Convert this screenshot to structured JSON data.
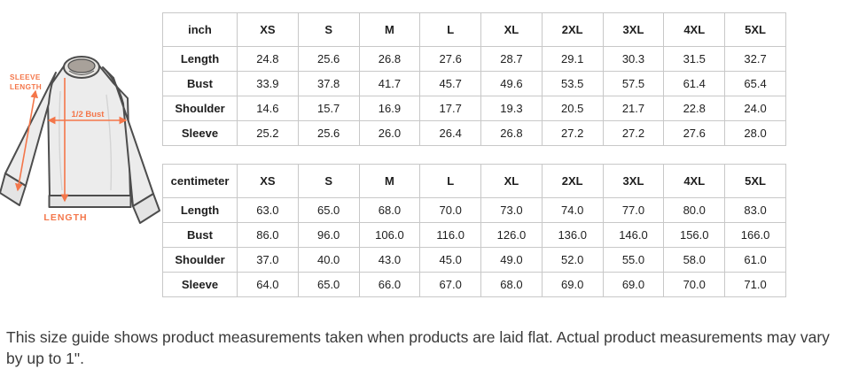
{
  "diagram": {
    "annotation_labels": {
      "sleeve_length_line1": "SLEEVE",
      "sleeve_length_line2": "LENGTH",
      "half_bust": "1/2 Bust",
      "length": "LENGTH"
    },
    "colors": {
      "annotation_orange": "#F4764A",
      "garment_fill": "#ECECEC",
      "garment_outline": "#4D4D4D",
      "table_border": "#C8C8C8"
    }
  },
  "tables": [
    {
      "unit_header": "inch",
      "size_headers": [
        "XS",
        "S",
        "M",
        "L",
        "XL",
        "2XL",
        "3XL",
        "4XL",
        "5XL"
      ],
      "rows": [
        {
          "label": "Length",
          "values": [
            "24.8",
            "25.6",
            "26.8",
            "27.6",
            "28.7",
            "29.1",
            "30.3",
            "31.5",
            "32.7"
          ]
        },
        {
          "label": "Bust",
          "values": [
            "33.9",
            "37.8",
            "41.7",
            "45.7",
            "49.6",
            "53.5",
            "57.5",
            "61.4",
            "65.4"
          ]
        },
        {
          "label": "Shoulder",
          "values": [
            "14.6",
            "15.7",
            "16.9",
            "17.7",
            "19.3",
            "20.5",
            "21.7",
            "22.8",
            "24.0"
          ]
        },
        {
          "label": "Sleeve",
          "values": [
            "25.2",
            "25.6",
            "26.0",
            "26.4",
            "26.8",
            "27.2",
            "27.2",
            "27.6",
            "28.0"
          ]
        }
      ]
    },
    {
      "unit_header": "centimeter",
      "size_headers": [
        "XS",
        "S",
        "M",
        "L",
        "XL",
        "2XL",
        "3XL",
        "4XL",
        "5XL"
      ],
      "rows": [
        {
          "label": "Length",
          "values": [
            "63.0",
            "65.0",
            "68.0",
            "70.0",
            "73.0",
            "74.0",
            "77.0",
            "80.0",
            "83.0"
          ]
        },
        {
          "label": "Bust",
          "values": [
            "86.0",
            "96.0",
            "106.0",
            "116.0",
            "126.0",
            "136.0",
            "146.0",
            "156.0",
            "166.0"
          ]
        },
        {
          "label": "Shoulder",
          "values": [
            "37.0",
            "40.0",
            "43.0",
            "45.0",
            "49.0",
            "52.0",
            "55.0",
            "58.0",
            "61.0"
          ]
        },
        {
          "label": "Sleeve",
          "values": [
            "64.0",
            "65.0",
            "66.0",
            "67.0",
            "68.0",
            "69.0",
            "69.0",
            "70.0",
            "71.0"
          ]
        }
      ]
    }
  ],
  "footer": {
    "note": "This size guide shows product measurements taken when products are laid flat. Actual product measurements may vary by up to 1\"."
  }
}
